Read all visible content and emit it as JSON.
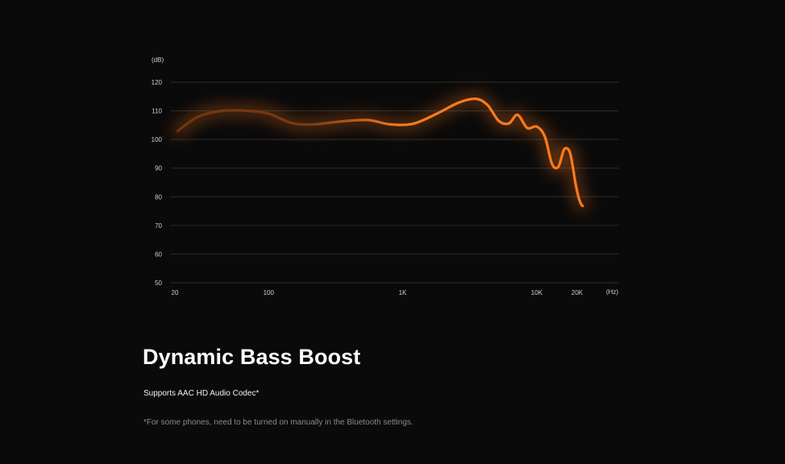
{
  "chart_data": {
    "type": "line",
    "x_scale": "log",
    "y_unit": "(dB)",
    "x_unit": "(Hz)",
    "ylim": [
      50,
      120
    ],
    "y_ticks": [
      120,
      110,
      100,
      90,
      80,
      70,
      60,
      50
    ],
    "x_ticks": [
      {
        "value": 20,
        "label": "20"
      },
      {
        "value": 100,
        "label": "100"
      },
      {
        "value": 1000,
        "label": "1K"
      },
      {
        "value": 10000,
        "label": "10K"
      },
      {
        "value": 20000,
        "label": "20K"
      }
    ],
    "grid": true,
    "series": [
      {
        "color": "#ff7a1a",
        "fade_color": "#7a3a10",
        "x": [
          21,
          30,
          45,
          70,
          100,
          150,
          220,
          350,
          550,
          800,
          1200,
          1800,
          2600,
          3500,
          4300,
          5200,
          6200,
          7200,
          8500,
          10000,
          11500,
          13000,
          14500,
          16000,
          17500,
          18500,
          19600,
          20600,
          21400,
          22000
        ],
        "y": [
          103,
          108,
          110,
          110,
          109,
          105.7,
          105.3,
          106.3,
          106.8,
          105.3,
          105.5,
          109,
          112.8,
          114.2,
          112,
          106.5,
          105.6,
          108.6,
          104,
          104.5,
          101,
          91.5,
          90.5,
          96.5,
          96,
          91,
          84,
          79.5,
          77.5,
          76.8
        ]
      }
    ]
  },
  "content": {
    "title": "Dynamic Bass Boost",
    "subtitle": "Supports AAC HD Audio Codec*",
    "footnote": "*For some phones, need to be turned on manually in the Bluetooth settings."
  }
}
